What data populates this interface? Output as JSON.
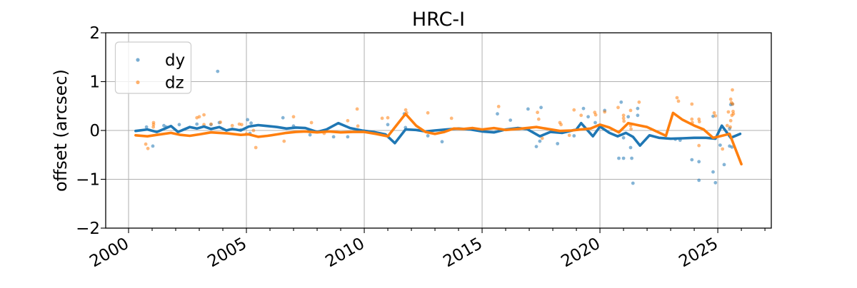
{
  "chart_data": {
    "type": "scatter",
    "title": "HRC-I",
    "xlabel": "",
    "ylabel": "offset (arcsec)",
    "xlim": [
      1999.03,
      2027.27
    ],
    "ylim": [
      -2,
      2
    ],
    "grid": true,
    "xticks": {
      "values": [
        2000,
        2005,
        2010,
        2015,
        2020,
        2025
      ],
      "labels": [
        "2000",
        "2005",
        "2010",
        "2015",
        "2020",
        "2025"
      ],
      "minor_step": 1,
      "label_rotation_deg": 30
    },
    "yticks": {
      "values": [
        -2,
        -1,
        0,
        1,
        2
      ],
      "labels": [
        "−2",
        "−1",
        "0",
        "1",
        "2"
      ]
    },
    "legend": {
      "location": "upper left",
      "entries": [
        "dy",
        "dz"
      ]
    },
    "colors": {
      "dy": "#1f77b4",
      "dz": "#ff7f0e",
      "grid": "#b0b0b0",
      "axis": "#000000",
      "scatter_opacity": 0.55
    },
    "series": [
      {
        "name": "dy",
        "kind": "scatter",
        "color": "#1f77b4",
        "points": [
          [
            2000.76,
            0.07
          ],
          [
            2001.03,
            -0.32
          ],
          [
            2001.5,
            0.1
          ],
          [
            2001.6,
            0.07
          ],
          [
            2002.15,
            0.12
          ],
          [
            2002.9,
            0.13
          ],
          [
            2003.5,
            0.12
          ],
          [
            2003.78,
            1.21
          ],
          [
            2003.85,
            0.16
          ],
          [
            2004.76,
            0.01
          ],
          [
            2005.05,
            0.22
          ],
          [
            2005.2,
            0.15
          ],
          [
            2005.15,
            -0.06
          ],
          [
            2006.55,
            0.26
          ],
          [
            2007.0,
            0.09
          ],
          [
            2007.7,
            -0.09
          ],
          [
            2008.7,
            -0.13
          ],
          [
            2009.3,
            -0.13
          ],
          [
            2010.8,
            -0.09
          ],
          [
            2011.0,
            0.12
          ],
          [
            2011.7,
            0.34
          ],
          [
            2011.75,
            0.06
          ],
          [
            2012.7,
            -0.11
          ],
          [
            2013.3,
            -0.23
          ],
          [
            2015.65,
            0.34
          ],
          [
            2016.2,
            0.21
          ],
          [
            2016.95,
            0.44
          ],
          [
            2017.5,
            0.47
          ],
          [
            2017.45,
            -0.22
          ],
          [
            2017.3,
            -0.33
          ],
          [
            2018.2,
            -0.27
          ],
          [
            2018.9,
            -0.11
          ],
          [
            2019.3,
            0.45
          ],
          [
            2019.5,
            0.28
          ],
          [
            2019.8,
            0.16
          ],
          [
            2020.2,
            0.41
          ],
          [
            2020.9,
            0.58
          ],
          [
            2020.8,
            -0.57
          ],
          [
            2021.0,
            -0.57
          ],
          [
            2021.0,
            -0.15
          ],
          [
            2021.2,
            0.28
          ],
          [
            2021.3,
            -0.35
          ],
          [
            2021.35,
            -0.57
          ],
          [
            2021.4,
            -1.08
          ],
          [
            2021.6,
            0.45
          ],
          [
            2021.6,
            0.31
          ],
          [
            2023.2,
            -0.18
          ],
          [
            2023.4,
            -0.2
          ],
          [
            2023.9,
            -0.6
          ],
          [
            2024.2,
            -0.64
          ],
          [
            2024.2,
            -1.02
          ],
          [
            2024.8,
            0.29
          ],
          [
            2024.8,
            -0.85
          ],
          [
            2024.9,
            -1.07
          ],
          [
            2025.1,
            -0.3
          ],
          [
            2025.27,
            -0.7
          ],
          [
            2025.5,
            -0.32
          ],
          [
            2025.6,
            -0.34
          ],
          [
            2025.55,
            0.53
          ],
          [
            2025.62,
            0.54
          ],
          [
            2025.5,
            0.04
          ]
        ]
      },
      {
        "name": "dz",
        "kind": "scatter",
        "color": "#ff7f0e",
        "points": [
          [
            2000.73,
            -0.28
          ],
          [
            2000.82,
            -0.37
          ],
          [
            2001.06,
            0.16
          ],
          [
            2001.06,
            0.12
          ],
          [
            2001.05,
            0.07
          ],
          [
            2002.9,
            0.26
          ],
          [
            2003.0,
            0.28
          ],
          [
            2003.2,
            0.32
          ],
          [
            2003.2,
            0.12
          ],
          [
            2003.5,
            0.13
          ],
          [
            2003.9,
            0.17
          ],
          [
            2004.4,
            0.1
          ],
          [
            2004.7,
            0.13
          ],
          [
            2004.8,
            0.12
          ],
          [
            2005.0,
            -0.07
          ],
          [
            2005.3,
            0.0
          ],
          [
            2005.4,
            -0.35
          ],
          [
            2006.6,
            -0.22
          ],
          [
            2007.0,
            0.28
          ],
          [
            2007.76,
            0.16
          ],
          [
            2008.3,
            -0.06
          ],
          [
            2009.3,
            0.2
          ],
          [
            2009.7,
            0.44
          ],
          [
            2009.73,
            0.09
          ],
          [
            2010.76,
            0.25
          ],
          [
            2011.0,
            0.26
          ],
          [
            2011.76,
            0.42
          ],
          [
            2011.8,
            0.36
          ],
          [
            2012.7,
            0.36
          ],
          [
            2013.7,
            0.25
          ],
          [
            2015.7,
            0.49
          ],
          [
            2017.35,
            0.37
          ],
          [
            2017.4,
            0.23
          ],
          [
            2017.55,
            -0.16
          ],
          [
            2018.3,
            0.16
          ],
          [
            2018.35,
            0.12
          ],
          [
            2018.7,
            -0.1
          ],
          [
            2018.9,
            0.42
          ],
          [
            2019.2,
            0.31
          ],
          [
            2019.78,
            0.37
          ],
          [
            2019.82,
            0.32
          ],
          [
            2020.2,
            0.38
          ],
          [
            2020.77,
            0.47
          ],
          [
            2021.0,
            0.31
          ],
          [
            2021.0,
            0.25
          ],
          [
            2021.02,
            0.19
          ],
          [
            2021.3,
            0.41
          ],
          [
            2021.3,
            0.1
          ],
          [
            2021.32,
            0.03
          ],
          [
            2021.66,
            0.58
          ],
          [
            2023.27,
            0.67
          ],
          [
            2023.33,
            0.6
          ],
          [
            2023.9,
            0.54
          ],
          [
            2023.9,
            0.23
          ],
          [
            2023.92,
            0.16
          ],
          [
            2024.2,
            0.23
          ],
          [
            2024.22,
            0.18
          ],
          [
            2024.2,
            -0.31
          ],
          [
            2024.85,
            0.36
          ],
          [
            2024.9,
            0.3
          ],
          [
            2025.2,
            -0.38
          ],
          [
            2025.4,
            0.1
          ],
          [
            2025.45,
            0.38
          ],
          [
            2025.55,
            0.64
          ],
          [
            2025.58,
            0.57
          ],
          [
            2025.62,
            0.83
          ],
          [
            2025.63,
            0.54
          ],
          [
            2025.65,
            0.39
          ],
          [
            2025.66,
            0.34
          ],
          [
            2025.6,
            0.31
          ],
          [
            2025.55,
            0.2
          ],
          [
            2025.53,
            0.07
          ]
        ]
      },
      {
        "name": "dy_mean",
        "kind": "line",
        "color": "#1f77b4",
        "points": [
          [
            2000.3,
            -0.01
          ],
          [
            2000.8,
            0.02
          ],
          [
            2001.2,
            -0.03
          ],
          [
            2001.8,
            0.09
          ],
          [
            2002.1,
            -0.03
          ],
          [
            2002.6,
            0.07
          ],
          [
            2002.9,
            0.04
          ],
          [
            2003.2,
            0.08
          ],
          [
            2003.5,
            0.03
          ],
          [
            2003.85,
            0.07
          ],
          [
            2004.15,
            0.0
          ],
          [
            2004.4,
            0.03
          ],
          [
            2004.76,
            0.0
          ],
          [
            2005.1,
            0.08
          ],
          [
            2005.5,
            0.11
          ],
          [
            2005.9,
            0.09
          ],
          [
            2006.3,
            0.07
          ],
          [
            2006.7,
            0.04
          ],
          [
            2007.1,
            0.06
          ],
          [
            2007.5,
            0.05
          ],
          [
            2008.0,
            -0.03
          ],
          [
            2008.4,
            0.02
          ],
          [
            2008.9,
            0.15
          ],
          [
            2009.4,
            0.05
          ],
          [
            2009.9,
            0.0
          ],
          [
            2010.4,
            -0.03
          ],
          [
            2010.9,
            -0.08
          ],
          [
            2011.3,
            -0.26
          ],
          [
            2011.75,
            0.02
          ],
          [
            2012.2,
            0.01
          ],
          [
            2012.6,
            -0.02
          ],
          [
            2013.0,
            0.0
          ],
          [
            2013.5,
            0.02
          ],
          [
            2014.0,
            0.04
          ],
          [
            2014.5,
            0.02
          ],
          [
            2015.0,
            -0.02
          ],
          [
            2015.5,
            -0.04
          ],
          [
            2016.0,
            0.02
          ],
          [
            2016.5,
            0.05
          ],
          [
            2016.9,
            0.03
          ],
          [
            2017.45,
            -0.12
          ],
          [
            2017.9,
            -0.03
          ],
          [
            2018.4,
            -0.05
          ],
          [
            2019.0,
            0.02
          ],
          [
            2019.2,
            0.15
          ],
          [
            2019.7,
            -0.12
          ],
          [
            2020.0,
            0.08
          ],
          [
            2020.4,
            -0.05
          ],
          [
            2020.75,
            -0.12
          ],
          [
            2021.1,
            -0.05
          ],
          [
            2021.4,
            -0.13
          ],
          [
            2021.7,
            -0.31
          ],
          [
            2022.1,
            -0.1
          ],
          [
            2022.5,
            -0.15
          ],
          [
            2023.0,
            -0.17
          ],
          [
            2023.5,
            -0.16
          ],
          [
            2024.0,
            -0.15
          ],
          [
            2024.5,
            -0.15
          ],
          [
            2024.9,
            -0.17
          ],
          [
            2025.17,
            0.1
          ],
          [
            2025.55,
            -0.15
          ],
          [
            2025.95,
            -0.07
          ]
        ]
      },
      {
        "name": "dz_mean",
        "kind": "line",
        "color": "#ff7f0e",
        "points": [
          [
            2000.3,
            -0.1
          ],
          [
            2000.8,
            -0.12
          ],
          [
            2001.2,
            -0.09
          ],
          [
            2001.8,
            -0.05
          ],
          [
            2002.2,
            -0.09
          ],
          [
            2002.6,
            -0.11
          ],
          [
            2003.0,
            -0.08
          ],
          [
            2003.5,
            -0.04
          ],
          [
            2003.85,
            -0.05
          ],
          [
            2004.2,
            -0.06
          ],
          [
            2004.76,
            -0.09
          ],
          [
            2005.1,
            -0.08
          ],
          [
            2005.5,
            -0.13
          ],
          [
            2005.9,
            -0.11
          ],
          [
            2006.3,
            -0.08
          ],
          [
            2006.7,
            -0.05
          ],
          [
            2007.1,
            -0.03
          ],
          [
            2007.5,
            -0.02
          ],
          [
            2008.0,
            -0.04
          ],
          [
            2008.5,
            -0.02
          ],
          [
            2009.0,
            -0.04
          ],
          [
            2009.5,
            -0.03
          ],
          [
            2010.0,
            -0.03
          ],
          [
            2010.5,
            -0.07
          ],
          [
            2011.0,
            -0.12
          ],
          [
            2011.75,
            0.34
          ],
          [
            2012.2,
            0.1
          ],
          [
            2012.6,
            -0.03
          ],
          [
            2013.0,
            -0.07
          ],
          [
            2013.4,
            -0.03
          ],
          [
            2013.8,
            0.04
          ],
          [
            2014.2,
            0.03
          ],
          [
            2014.6,
            0.05
          ],
          [
            2015.0,
            0.02
          ],
          [
            2015.5,
            0.05
          ],
          [
            2016.0,
            0.01
          ],
          [
            2016.5,
            0.03
          ],
          [
            2017.3,
            0.07
          ],
          [
            2017.8,
            0.03
          ],
          [
            2018.3,
            -0.01
          ],
          [
            2018.8,
            0.0
          ],
          [
            2019.2,
            0.02
          ],
          [
            2019.6,
            0.04
          ],
          [
            2020.0,
            0.12
          ],
          [
            2020.4,
            0.06
          ],
          [
            2020.8,
            -0.04
          ],
          [
            2021.2,
            0.15
          ],
          [
            2021.6,
            0.11
          ],
          [
            2022.0,
            0.07
          ],
          [
            2022.4,
            -0.02
          ],
          [
            2022.8,
            -0.11
          ],
          [
            2023.1,
            0.36
          ],
          [
            2023.5,
            0.22
          ],
          [
            2024.0,
            0.1
          ],
          [
            2024.4,
            0.02
          ],
          [
            2024.8,
            -0.15
          ],
          [
            2025.0,
            -0.13
          ],
          [
            2025.5,
            -0.07
          ],
          [
            2026.0,
            -0.69
          ]
        ]
      }
    ]
  }
}
